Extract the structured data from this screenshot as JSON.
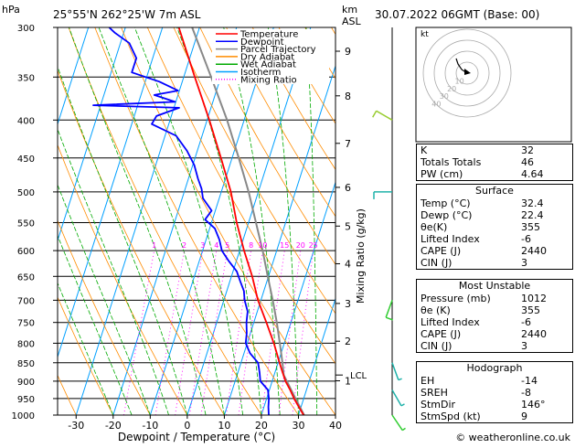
{
  "header": {
    "hpa_label": "hPa",
    "location": "25°55'N  262°25'W  7m  ASL",
    "km_label": "km",
    "asl_label": "ASL",
    "datetime": "30.07.2022  06GMT  (Base: 00)"
  },
  "legend": [
    {
      "label": "Temperature",
      "color": "#ff0000",
      "style": "solid"
    },
    {
      "label": "Dewpoint",
      "color": "#0000ff",
      "style": "solid"
    },
    {
      "label": "Parcel Trajectory",
      "color": "#888888",
      "style": "solid"
    },
    {
      "label": "Dry Adiabat",
      "color": "#ff8c00",
      "style": "solid"
    },
    {
      "label": "Wet Adiabat",
      "color": "#00aa00",
      "style": "solid"
    },
    {
      "label": "Isotherm",
      "color": "#00a0ff",
      "style": "solid"
    },
    {
      "label": "Mixing Ratio",
      "color": "#ff00ff",
      "style": "dotted"
    }
  ],
  "chart_data": {
    "type": "line",
    "xlabel": "Dewpoint / Temperature (°C)",
    "ylabel_right": "Mixing Ratio (g/kg)",
    "x_ticks": [
      -30,
      -20,
      -10,
      0,
      10,
      20,
      30,
      40
    ],
    "xlim": [
      -35,
      40
    ],
    "pressure_ticks": [
      300,
      350,
      400,
      450,
      500,
      550,
      600,
      650,
      700,
      750,
      800,
      850,
      900,
      950,
      1000
    ],
    "km_ticks": [
      {
        "km": "9",
        "p": 323
      },
      {
        "km": "8",
        "p": 371
      },
      {
        "km": "7",
        "p": 430
      },
      {
        "km": "6",
        "p": 493
      },
      {
        "km": "5",
        "p": 556
      },
      {
        "km": "4",
        "p": 625
      },
      {
        "km": "3",
        "p": 707
      },
      {
        "km": "2",
        "p": 795
      },
      {
        "km": "1",
        "p": 899
      }
    ],
    "lcl": {
      "label": "LCL",
      "p": 883
    },
    "mixing_ratio_labels": [
      "1",
      "2",
      "3",
      "4",
      "5",
      "8",
      "10",
      "15",
      "20",
      "25"
    ],
    "mixing_ratio_values": [
      1,
      2,
      3,
      4,
      5,
      8,
      10,
      15,
      20,
      25
    ],
    "temperature": [
      {
        "p": 1012,
        "t": 32.4
      },
      {
        "p": 1000,
        "t": 31.4
      },
      {
        "p": 975,
        "t": 29.4
      },
      {
        "p": 950,
        "t": 27.4
      },
      {
        "p": 925,
        "t": 25.6
      },
      {
        "p": 900,
        "t": 23.6
      },
      {
        "p": 875,
        "t": 22.0
      },
      {
        "p": 850,
        "t": 20.4
      },
      {
        "p": 800,
        "t": 17.2
      },
      {
        "p": 750,
        "t": 13.4
      },
      {
        "p": 700,
        "t": 9.2
      },
      {
        "p": 650,
        "t": 5.6
      },
      {
        "p": 600,
        "t": 1.2
      },
      {
        "p": 550,
        "t": -3.2
      },
      {
        "p": 500,
        "t": -7.4
      },
      {
        "p": 450,
        "t": -13.0
      },
      {
        "p": 400,
        "t": -19.4
      },
      {
        "p": 350,
        "t": -27.0
      },
      {
        "p": 300,
        "t": -35.6
      }
    ],
    "dewpoint": [
      {
        "p": 1012,
        "t": 22.4
      },
      {
        "p": 1000,
        "t": 22.0
      },
      {
        "p": 975,
        "t": 21.2
      },
      {
        "p": 950,
        "t": 20.6
      },
      {
        "p": 925,
        "t": 19.6
      },
      {
        "p": 900,
        "t": 16.8
      },
      {
        "p": 875,
        "t": 15.8
      },
      {
        "p": 850,
        "t": 14.6
      },
      {
        "p": 825,
        "t": 11.6
      },
      {
        "p": 800,
        "t": 9.6
      },
      {
        "p": 775,
        "t": 9.0
      },
      {
        "p": 750,
        "t": 8.0
      },
      {
        "p": 725,
        "t": 7.4
      },
      {
        "p": 700,
        "t": 5.6
      },
      {
        "p": 680,
        "t": 4.6
      },
      {
        "p": 660,
        "t": 2.8
      },
      {
        "p": 640,
        "t": 1.0
      },
      {
        "p": 620,
        "t": -2.0
      },
      {
        "p": 600,
        "t": -4.8
      },
      {
        "p": 580,
        "t": -6.4
      },
      {
        "p": 560,
        "t": -8.6
      },
      {
        "p": 545,
        "t": -12.0
      },
      {
        "p": 530,
        "t": -11.0
      },
      {
        "p": 510,
        "t": -14.4
      },
      {
        "p": 495,
        "t": -15.6
      },
      {
        "p": 480,
        "t": -17.4
      },
      {
        "p": 460,
        "t": -19.6
      },
      {
        "p": 440,
        "t": -22.8
      },
      {
        "p": 420,
        "t": -27.0
      },
      {
        "p": 405,
        "t": -34.6
      },
      {
        "p": 395,
        "t": -34.0
      },
      {
        "p": 385,
        "t": -28.6
      },
      {
        "p": 382,
        "t": -52.0
      },
      {
        "p": 378,
        "t": -30.2
      },
      {
        "p": 370,
        "t": -36.4
      },
      {
        "p": 365,
        "t": -30.4
      },
      {
        "p": 355,
        "t": -36.2
      },
      {
        "p": 345,
        "t": -44.4
      },
      {
        "p": 330,
        "t": -44.4
      },
      {
        "p": 315,
        "t": -47.6
      },
      {
        "p": 305,
        "t": -52.4
      },
      {
        "p": 300,
        "t": -54.4
      }
    ],
    "parcel": [
      {
        "p": 1012,
        "t": 32.4
      },
      {
        "p": 950,
        "t": 27.8
      },
      {
        "p": 883,
        "t": 22.6
      },
      {
        "p": 850,
        "t": 21.2
      },
      {
        "p": 800,
        "t": 18.8
      },
      {
        "p": 750,
        "t": 16.2
      },
      {
        "p": 700,
        "t": 13.2
      },
      {
        "p": 650,
        "t": 9.8
      },
      {
        "p": 600,
        "t": 6.2
      },
      {
        "p": 550,
        "t": 2.0
      },
      {
        "p": 500,
        "t": -2.6
      },
      {
        "p": 450,
        "t": -8.2
      },
      {
        "p": 400,
        "t": -14.6
      },
      {
        "p": 350,
        "t": -22.6
      },
      {
        "p": 300,
        "t": -32.0
      }
    ]
  },
  "wind_barbs": [
    {
      "p": 400,
      "dir": 300,
      "kt": 10,
      "color": "#9acd32"
    },
    {
      "p": 500,
      "dir": 270,
      "kt": 10,
      "color": "#20b2aa"
    },
    {
      "p": 700,
      "dir": 200,
      "kt": 10,
      "color": "#32cd32"
    },
    {
      "p": 850,
      "dir": 160,
      "kt": 5,
      "color": "#20b2aa"
    },
    {
      "p": 925,
      "dir": 150,
      "kt": 5,
      "color": "#20b2aa"
    },
    {
      "p": 1000,
      "dir": 146,
      "kt": 9,
      "color": "#32cd32"
    }
  ],
  "hodograph": {
    "title": "kt",
    "ring_labels": [
      "10",
      "20",
      "30",
      "40"
    ]
  },
  "indices": [
    {
      "label": "K",
      "value": "32"
    },
    {
      "label": "Totals Totals",
      "value": "46"
    },
    {
      "label": "PW (cm)",
      "value": "4.64"
    }
  ],
  "surface": {
    "title": "Surface",
    "rows": [
      {
        "label": "Temp (°C)",
        "value": "32.4"
      },
      {
        "label": "Dewp (°C)",
        "value": "22.4"
      },
      {
        "label": "θe(K)",
        "value": "355"
      },
      {
        "label": "Lifted Index",
        "value": "-6"
      },
      {
        "label": "CAPE (J)",
        "value": "2440"
      },
      {
        "label": "CIN (J)",
        "value": "3"
      }
    ]
  },
  "most_unstable": {
    "title": "Most Unstable",
    "rows": [
      {
        "label": "Pressure (mb)",
        "value": "1012"
      },
      {
        "label": "θe (K)",
        "value": "355"
      },
      {
        "label": "Lifted Index",
        "value": "-6"
      },
      {
        "label": "CAPE (J)",
        "value": "2440"
      },
      {
        "label": "CIN (J)",
        "value": "3"
      }
    ]
  },
  "hodograph_table": {
    "title": "Hodograph",
    "rows": [
      {
        "label": "EH",
        "value": "-14"
      },
      {
        "label": "SREH",
        "value": "-8"
      },
      {
        "label": "StmDir",
        "value": "146°"
      },
      {
        "label": "StmSpd (kt)",
        "value": "9"
      }
    ]
  },
  "footer": {
    "credit": "© weatheronline.co.uk"
  }
}
